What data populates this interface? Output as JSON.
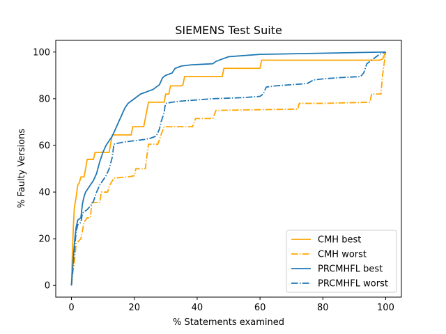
{
  "chart_data": {
    "type": "line",
    "title": "SIEMENS Test Suite",
    "xlabel": "% Statements examined",
    "ylabel": "% Faulty Versions",
    "xlim": [
      -5,
      105
    ],
    "ylim": [
      -5,
      105
    ],
    "xticks": [
      0,
      20,
      40,
      60,
      80,
      100
    ],
    "yticks": [
      0,
      20,
      40,
      60,
      80,
      100
    ],
    "grid": false,
    "legend_position": "lower-right",
    "series": [
      {
        "name": "CMH best",
        "color": "#ffa500",
        "style": "solid",
        "points": [
          [
            0,
            0
          ],
          [
            0.3,
            14
          ],
          [
            0.6,
            25
          ],
          [
            0.9,
            33
          ],
          [
            1.5,
            38
          ],
          [
            2,
            43
          ],
          [
            2.5,
            44
          ],
          [
            3,
            46.5
          ],
          [
            4,
            46.5
          ],
          [
            4.5,
            50
          ],
          [
            5,
            54
          ],
          [
            7,
            54
          ],
          [
            7.5,
            57
          ],
          [
            12,
            57
          ],
          [
            12.5,
            61
          ],
          [
            13,
            64.5
          ],
          [
            19,
            64.5
          ],
          [
            19.5,
            68
          ],
          [
            23,
            68
          ],
          [
            23.5,
            71.5
          ],
          [
            24.5,
            78.5
          ],
          [
            29.5,
            78.5
          ],
          [
            30,
            82
          ],
          [
            31,
            82
          ],
          [
            31.5,
            85.5
          ],
          [
            35,
            85.5
          ],
          [
            35.5,
            86
          ],
          [
            36,
            89.5
          ],
          [
            48,
            89.5
          ],
          [
            48.5,
            93
          ],
          [
            60,
            93
          ],
          [
            60.5,
            96.5
          ],
          [
            98,
            96.5
          ],
          [
            99,
            97
          ],
          [
            100,
            100
          ]
        ]
      },
      {
        "name": "CMH worst",
        "color": "#ffa500",
        "style": "dashdot",
        "points": [
          [
            0,
            0
          ],
          [
            0.5,
            6
          ],
          [
            1,
            11
          ],
          [
            1.5,
            18
          ],
          [
            3,
            20
          ],
          [
            4,
            27
          ],
          [
            5,
            29
          ],
          [
            6,
            29
          ],
          [
            6.5,
            35.5
          ],
          [
            9,
            35.5
          ],
          [
            9.5,
            40
          ],
          [
            11.5,
            40
          ],
          [
            12,
            42.5
          ],
          [
            13.5,
            46
          ],
          [
            18,
            46.5
          ],
          [
            20,
            47
          ],
          [
            20.5,
            50
          ],
          [
            23.5,
            50
          ],
          [
            24.5,
            60.5
          ],
          [
            27.5,
            60.5
          ],
          [
            28.5,
            64.5
          ],
          [
            29.5,
            68
          ],
          [
            38.5,
            68
          ],
          [
            39.5,
            71.5
          ],
          [
            45,
            71.5
          ],
          [
            46,
            75
          ],
          [
            70,
            75.5
          ],
          [
            72,
            75.5
          ],
          [
            72.5,
            78
          ],
          [
            80,
            78
          ],
          [
            95,
            78.5
          ],
          [
            95.5,
            82
          ],
          [
            98.5,
            82
          ],
          [
            99,
            90
          ],
          [
            100,
            100
          ]
        ]
      },
      {
        "name": "PRCMHFL best",
        "color": "#1f77b4",
        "style": "solid",
        "points": [
          [
            0,
            0
          ],
          [
            0.5,
            10
          ],
          [
            1,
            19
          ],
          [
            1.5,
            25
          ],
          [
            2,
            28
          ],
          [
            3,
            29
          ],
          [
            3.5,
            35
          ],
          [
            4,
            38
          ],
          [
            4.5,
            40
          ],
          [
            5,
            41
          ],
          [
            6,
            43
          ],
          [
            7,
            45
          ],
          [
            8,
            48
          ],
          [
            9,
            53
          ],
          [
            10,
            57
          ],
          [
            11,
            60
          ],
          [
            12,
            62
          ],
          [
            13,
            64
          ],
          [
            14,
            67
          ],
          [
            15,
            70
          ],
          [
            16,
            73
          ],
          [
            17,
            76
          ],
          [
            18,
            78
          ],
          [
            19,
            79
          ],
          [
            20,
            80
          ],
          [
            21,
            81
          ],
          [
            22,
            82
          ],
          [
            24,
            83
          ],
          [
            26,
            84
          ],
          [
            27,
            85
          ],
          [
            28,
            86
          ],
          [
            29,
            89
          ],
          [
            30,
            90
          ],
          [
            31,
            90.5
          ],
          [
            32,
            91
          ],
          [
            33,
            93
          ],
          [
            35,
            94
          ],
          [
            38,
            94.5
          ],
          [
            45,
            95
          ],
          [
            46,
            96
          ],
          [
            48,
            97
          ],
          [
            50,
            98
          ],
          [
            55,
            98.5
          ],
          [
            60,
            99
          ],
          [
            100,
            100
          ]
        ]
      },
      {
        "name": "PRCMHFL worst",
        "color": "#1f77b4",
        "style": "dashdot",
        "points": [
          [
            0,
            0
          ],
          [
            0.5,
            9
          ],
          [
            1,
            16
          ],
          [
            1.5,
            23
          ],
          [
            2,
            26
          ],
          [
            3,
            27
          ],
          [
            3.5,
            31
          ],
          [
            5,
            32.5
          ],
          [
            6,
            34
          ],
          [
            7,
            36
          ],
          [
            8,
            40
          ],
          [
            9,
            43
          ],
          [
            10,
            45
          ],
          [
            11,
            47
          ],
          [
            12,
            50
          ],
          [
            13,
            55
          ],
          [
            13.5,
            60.5
          ],
          [
            15,
            61
          ],
          [
            17,
            61.5
          ],
          [
            20,
            62
          ],
          [
            23,
            62.5
          ],
          [
            25,
            63
          ],
          [
            27,
            64
          ],
          [
            28,
            67
          ],
          [
            28.5,
            70
          ],
          [
            29,
            72
          ],
          [
            29.5,
            74
          ],
          [
            29.8,
            77
          ],
          [
            30,
            78
          ],
          [
            32,
            78.5
          ],
          [
            35,
            79
          ],
          [
            40,
            79.5
          ],
          [
            45,
            80
          ],
          [
            55,
            80.5
          ],
          [
            60,
            81
          ],
          [
            61,
            82
          ],
          [
            62,
            85
          ],
          [
            65,
            85.5
          ],
          [
            75,
            86.5
          ],
          [
            77,
            88
          ],
          [
            80,
            88.5
          ],
          [
            85,
            89
          ],
          [
            92,
            89.5
          ],
          [
            93,
            91
          ],
          [
            94,
            95
          ],
          [
            95,
            96
          ],
          [
            96,
            97
          ],
          [
            97,
            98
          ],
          [
            98,
            99
          ],
          [
            100,
            100
          ]
        ]
      }
    ]
  }
}
